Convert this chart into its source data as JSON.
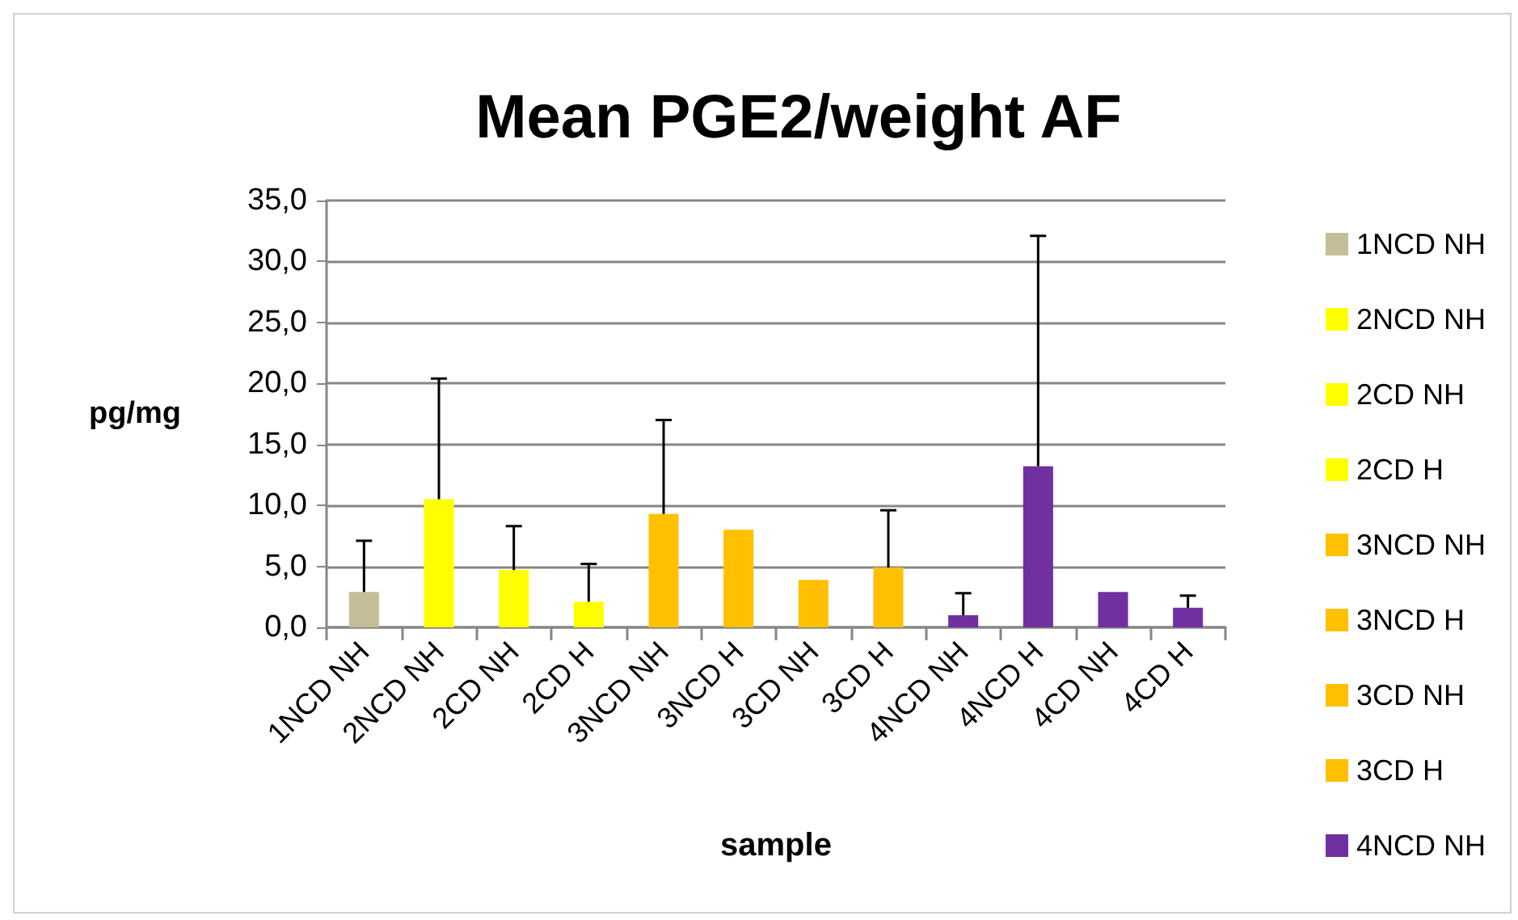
{
  "chart_data": {
    "type": "bar",
    "title": "Mean PGE2/weight AF",
    "xlabel": "sample",
    "ylabel": "pg/mg",
    "categories": [
      "1NCD NH",
      "2NCD NH",
      "2CD NH",
      "2CD H",
      "3NCD NH",
      "3NCD H",
      "3CD NH",
      "3CD H",
      "4NCD NH",
      "4NCD H",
      "4CD NH",
      "4CD H"
    ],
    "series": [
      {
        "name": "1NCD NH",
        "color": "#c4bd97",
        "values": [
          2.9,
          null,
          null,
          null,
          null,
          null,
          null,
          null,
          null,
          null,
          null,
          null
        ],
        "errors": [
          [
            2.9,
            7.1
          ],
          null,
          null,
          null,
          null,
          null,
          null,
          null,
          null,
          null,
          null,
          null
        ]
      },
      {
        "name": "2NCD NH",
        "color": "#ffff00",
        "values": [
          null,
          10.5,
          null,
          null,
          null,
          null,
          null,
          null,
          null,
          null,
          null,
          null
        ],
        "errors": [
          null,
          [
            10.5,
            20.4
          ],
          null,
          null,
          null,
          null,
          null,
          null,
          null,
          null,
          null,
          null
        ]
      },
      {
        "name": "2CD NH",
        "color": "#ffff00",
        "values": [
          null,
          null,
          4.7,
          null,
          null,
          null,
          null,
          null,
          null,
          null,
          null,
          null
        ],
        "errors": [
          null,
          null,
          [
            4.7,
            8.3
          ],
          null,
          null,
          null,
          null,
          null,
          null,
          null,
          null,
          null
        ]
      },
      {
        "name": "2CD H",
        "color": "#ffff00",
        "values": [
          null,
          null,
          null,
          2.1,
          null,
          null,
          null,
          null,
          null,
          null,
          null,
          null
        ],
        "errors": [
          null,
          null,
          null,
          [
            2.1,
            5.2
          ],
          null,
          null,
          null,
          null,
          null,
          null,
          null,
          null
        ]
      },
      {
        "name": "3NCD NH",
        "color": "#ffc000",
        "values": [
          null,
          null,
          null,
          null,
          9.3,
          null,
          null,
          null,
          null,
          null,
          null,
          null
        ],
        "errors": [
          null,
          null,
          null,
          null,
          [
            9.3,
            17.0
          ],
          null,
          null,
          null,
          null,
          null,
          null,
          null
        ]
      },
      {
        "name": "3NCD H",
        "color": "#ffc000",
        "values": [
          null,
          null,
          null,
          null,
          null,
          8.0,
          null,
          null,
          null,
          null,
          null,
          null
        ]
      },
      {
        "name": "3CD NH",
        "color": "#ffc000",
        "values": [
          null,
          null,
          null,
          null,
          null,
          null,
          3.9,
          null,
          null,
          null,
          null,
          null
        ]
      },
      {
        "name": "3CD H",
        "color": "#ffc000",
        "values": [
          null,
          null,
          null,
          null,
          null,
          null,
          null,
          4.9,
          null,
          null,
          null,
          null
        ],
        "errors": [
          null,
          null,
          null,
          null,
          null,
          null,
          null,
          [
            4.9,
            9.6
          ],
          null,
          null,
          null,
          null
        ]
      },
      {
        "name": "4NCD NH",
        "color": "#7030a0",
        "values": [
          null,
          null,
          null,
          null,
          null,
          null,
          null,
          null,
          1.0,
          null,
          null,
          null
        ],
        "errors": [
          null,
          null,
          null,
          null,
          null,
          null,
          null,
          null,
          [
            1.0,
            2.8
          ],
          null,
          null,
          null
        ]
      },
      {
        "color": "#7030a0",
        "values": [
          null,
          null,
          null,
          null,
          null,
          null,
          null,
          null,
          null,
          13.2,
          null,
          null
        ],
        "errors": [
          null,
          null,
          null,
          null,
          null,
          null,
          null,
          null,
          null,
          [
            13.2,
            32.1
          ],
          null,
          null
        ]
      },
      {
        "color": "#7030a0",
        "values": [
          null,
          null,
          null,
          null,
          null,
          null,
          null,
          null,
          null,
          null,
          2.9,
          null
        ]
      },
      {
        "color": "#7030a0",
        "values": [
          null,
          null,
          null,
          null,
          null,
          null,
          null,
          null,
          null,
          null,
          null,
          1.6
        ],
        "errors": [
          null,
          null,
          null,
          null,
          null,
          null,
          null,
          null,
          null,
          null,
          null,
          [
            1.6,
            2.6
          ]
        ]
      }
    ],
    "ylim": [
      0,
      35
    ],
    "yticks": [
      {
        "value": 0,
        "label": "0,0"
      },
      {
        "value": 5,
        "label": "5,0"
      },
      {
        "value": 10,
        "label": "10,0"
      },
      {
        "value": 15,
        "label": "15,0"
      },
      {
        "value": 20,
        "label": "20,0"
      },
      {
        "value": 25,
        "label": "25,0"
      },
      {
        "value": 30,
        "label": "30,0"
      },
      {
        "value": 35,
        "label": "35,0"
      }
    ],
    "grid": "y",
    "legend": "right"
  }
}
